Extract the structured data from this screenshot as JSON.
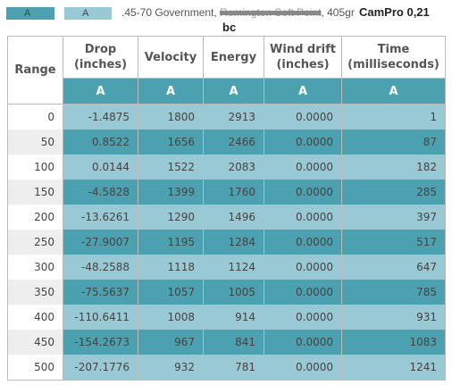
{
  "legend": {
    "swatch_1_label": "A",
    "swatch_2_label": "A",
    "cartridge_prefix": ".45-70 Government, ",
    "cartridge_struck": "Remington Soft Point",
    "cartridge_suffix": ", 405gr",
    "brand": "CamPro 0,21",
    "bc": "bc"
  },
  "table": {
    "headers": [
      "Range",
      "Drop (inches)",
      "Velocity",
      "Energy",
      "Wind drift (inches)",
      "Time (milliseconds)"
    ],
    "header_lines": {
      "drop": [
        "Drop",
        "(inches)"
      ],
      "wind": [
        "Wind drift",
        "(inches)"
      ],
      "time": [
        "Time",
        "(milliseconds)"
      ]
    },
    "series_label": "A",
    "rows": [
      {
        "range": "0",
        "drop": "-1.4875",
        "velocity": "1800",
        "energy": "2913",
        "wind": "0.0000",
        "time": "1"
      },
      {
        "range": "50",
        "drop": "0.8522",
        "velocity": "1656",
        "energy": "2466",
        "wind": "0.0000",
        "time": "87"
      },
      {
        "range": "100",
        "drop": "0.0144",
        "velocity": "1522",
        "energy": "2083",
        "wind": "0.0000",
        "time": "182"
      },
      {
        "range": "150",
        "drop": "-4.5828",
        "velocity": "1399",
        "energy": "1760",
        "wind": "0.0000",
        "time": "285"
      },
      {
        "range": "200",
        "drop": "-13.6261",
        "velocity": "1290",
        "energy": "1496",
        "wind": "0.0000",
        "time": "397"
      },
      {
        "range": "250",
        "drop": "-27.9007",
        "velocity": "1195",
        "energy": "1284",
        "wind": "0.0000",
        "time": "517"
      },
      {
        "range": "300",
        "drop": "-48.2588",
        "velocity": "1118",
        "energy": "1124",
        "wind": "0.0000",
        "time": "647"
      },
      {
        "range": "350",
        "drop": "-75.5637",
        "velocity": "1057",
        "energy": "1005",
        "wind": "0.0000",
        "time": "785"
      },
      {
        "range": "400",
        "drop": "-110.6411",
        "velocity": "1008",
        "energy": "914",
        "wind": "0.0000",
        "time": "931"
      },
      {
        "range": "450",
        "drop": "-154.2673",
        "velocity": "967",
        "energy": "841",
        "wind": "0.0000",
        "time": "1083"
      },
      {
        "range": "500",
        "drop": "-207.1776",
        "velocity": "932",
        "energy": "781",
        "wind": "0.0000",
        "time": "1241"
      }
    ]
  },
  "colors": {
    "series_dark": "#4ba1b0",
    "series_light": "#98c9d4",
    "range_alt": "#eeeeee"
  }
}
